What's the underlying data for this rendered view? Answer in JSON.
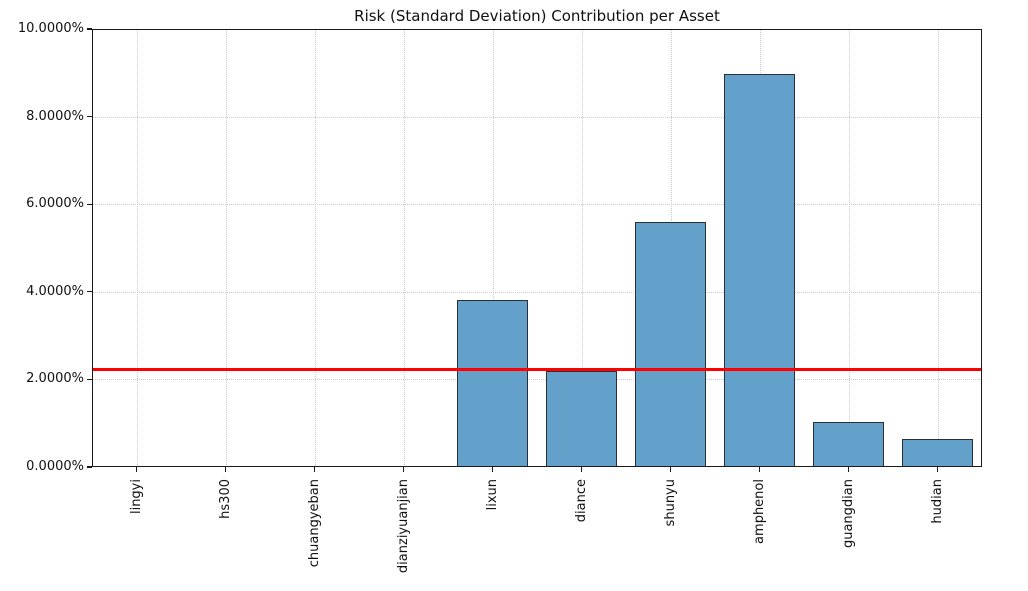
{
  "chart_data": {
    "type": "bar",
    "title": "Risk (Standard Deviation) Contribution per Asset",
    "xlabel": "",
    "ylabel": "",
    "categories": [
      "lingyi",
      "hs300",
      "chuangyeban",
      "dianziyuanjian",
      "lixun",
      "diance",
      "shunyu",
      "amphenol",
      "guangdian",
      "hudian"
    ],
    "values": [
      0.0,
      0.0,
      0.0,
      0.0,
      3.81,
      2.19,
      5.6,
      8.98,
      1.03,
      0.64
    ],
    "value_unit": "%",
    "ylim": [
      0,
      10
    ],
    "yticks": {
      "values": [
        0,
        2,
        4,
        6,
        8,
        10
      ],
      "labels": [
        "0.0000%",
        "2.0000%",
        "4.0000%",
        "6.0000%",
        "8.0000%",
        "10.0000%"
      ]
    },
    "grid": true,
    "grid_style": "dotted",
    "legend": null,
    "reference_line": {
      "value": 2.23,
      "color": "#ff0000"
    },
    "colors": {
      "bar_fill": "#63a0ca",
      "bar_edge": "#2a2f38",
      "zero_bar_edge": "#b3b3b3",
      "grid": "#c9c9c9",
      "axis": "#1a1a1a",
      "background": "#ffffff",
      "title_text": "#111111"
    },
    "bar_width_fraction": 0.8
  }
}
